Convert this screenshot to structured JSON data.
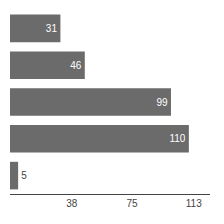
{
  "chart_data": {
    "type": "bar",
    "orientation": "horizontal",
    "categories": [
      null,
      null,
      null,
      null,
      null
    ],
    "values": [
      31,
      46,
      99,
      110,
      5
    ],
    "color": "#6b6b6b",
    "xlim": [
      0,
      123
    ],
    "xticks": [
      38,
      75,
      113
    ],
    "data_labels": true,
    "tick_labels": "x",
    "grid": false
  }
}
